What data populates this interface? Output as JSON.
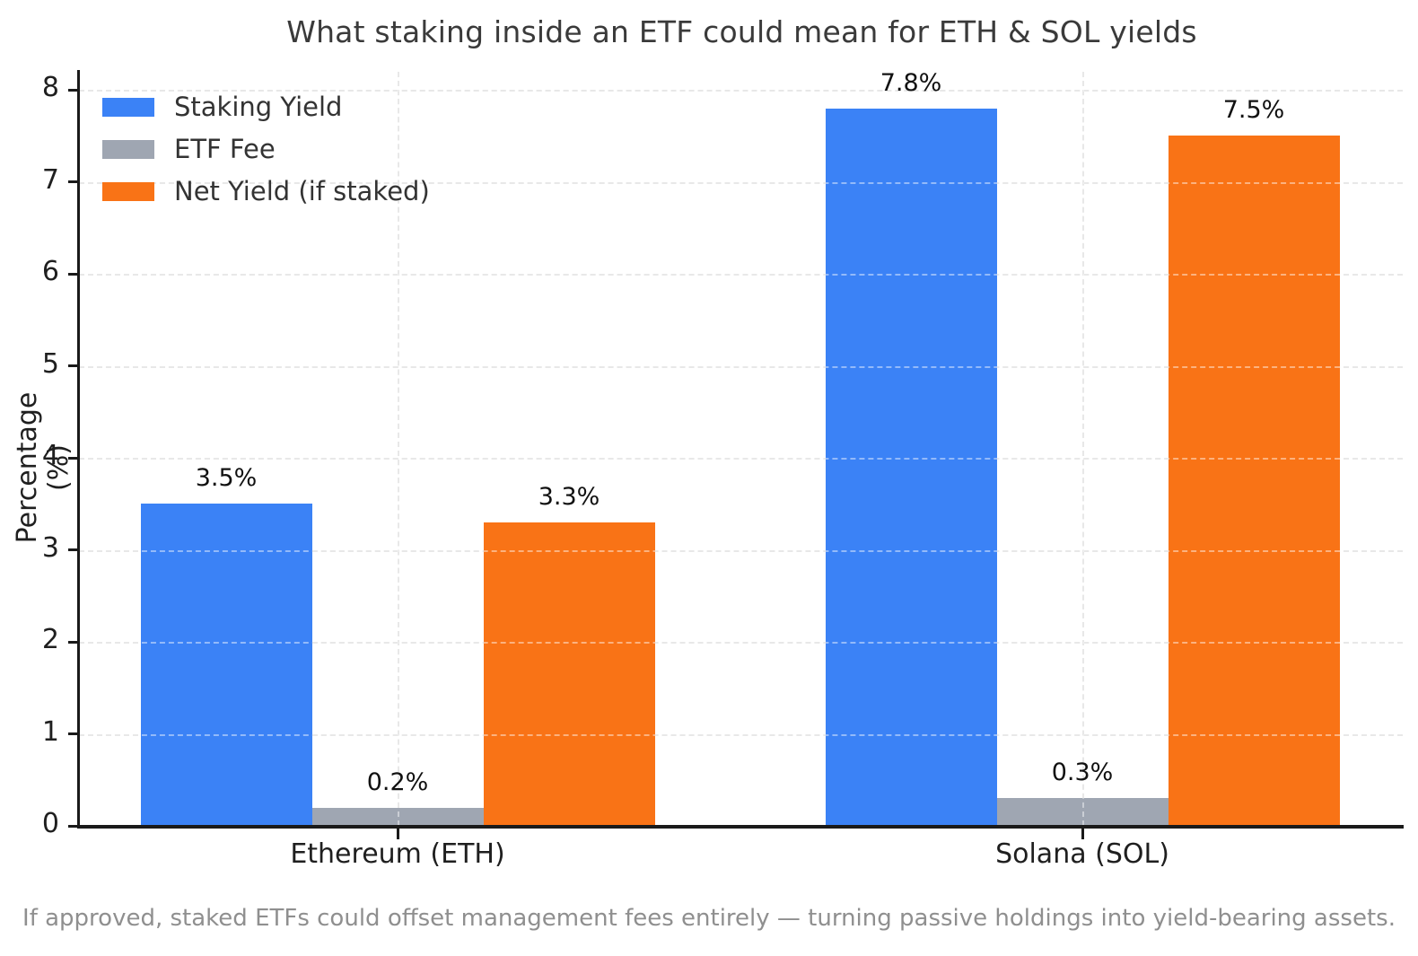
{
  "chart_data": {
    "type": "bar",
    "title": "What staking inside an ETF could mean for ETH & SOL yields",
    "categories": [
      "Ethereum (ETH)",
      "Solana (SOL)"
    ],
    "series": [
      {
        "name": "Staking Yield",
        "color": "#3b82f6",
        "values": [
          3.5,
          7.8
        ],
        "labels": [
          "3.5%",
          "7.8%"
        ]
      },
      {
        "name": "ETF Fee",
        "color": "#9fa6b2",
        "values": [
          0.2,
          0.3
        ],
        "labels": [
          "0.2%",
          "0.3%"
        ]
      },
      {
        "name": "Net Yield (if staked)",
        "color": "#f97316",
        "values": [
          3.3,
          7.5
        ],
        "labels": [
          "3.3%",
          "7.5%"
        ]
      }
    ],
    "xlabel": "",
    "ylabel": "Percentage (%)",
    "ylim": [
      0,
      8.2
    ],
    "yticks": [
      0,
      1,
      2,
      3,
      4,
      5,
      6,
      7,
      8
    ],
    "grid": true,
    "grid_style": "dashed",
    "legend_position": "upper left",
    "legend_frame": false
  },
  "footer": {
    "note": "If approved, staked ETFs could offset management fees entirely — turning passive holdings into yield-bearing assets."
  },
  "colors": {
    "background": "#ffffff",
    "title_text": "#3a3a3a",
    "tick_text": "#1f1f1f",
    "bar_label_text": "#111111",
    "footer_text": "#8f8f8f",
    "grid": "#d6d6d6",
    "spine": "#1a1a1a",
    "series_blue": "#3b82f6",
    "series_gray": "#9fa6b2",
    "series_orange": "#f97316"
  }
}
